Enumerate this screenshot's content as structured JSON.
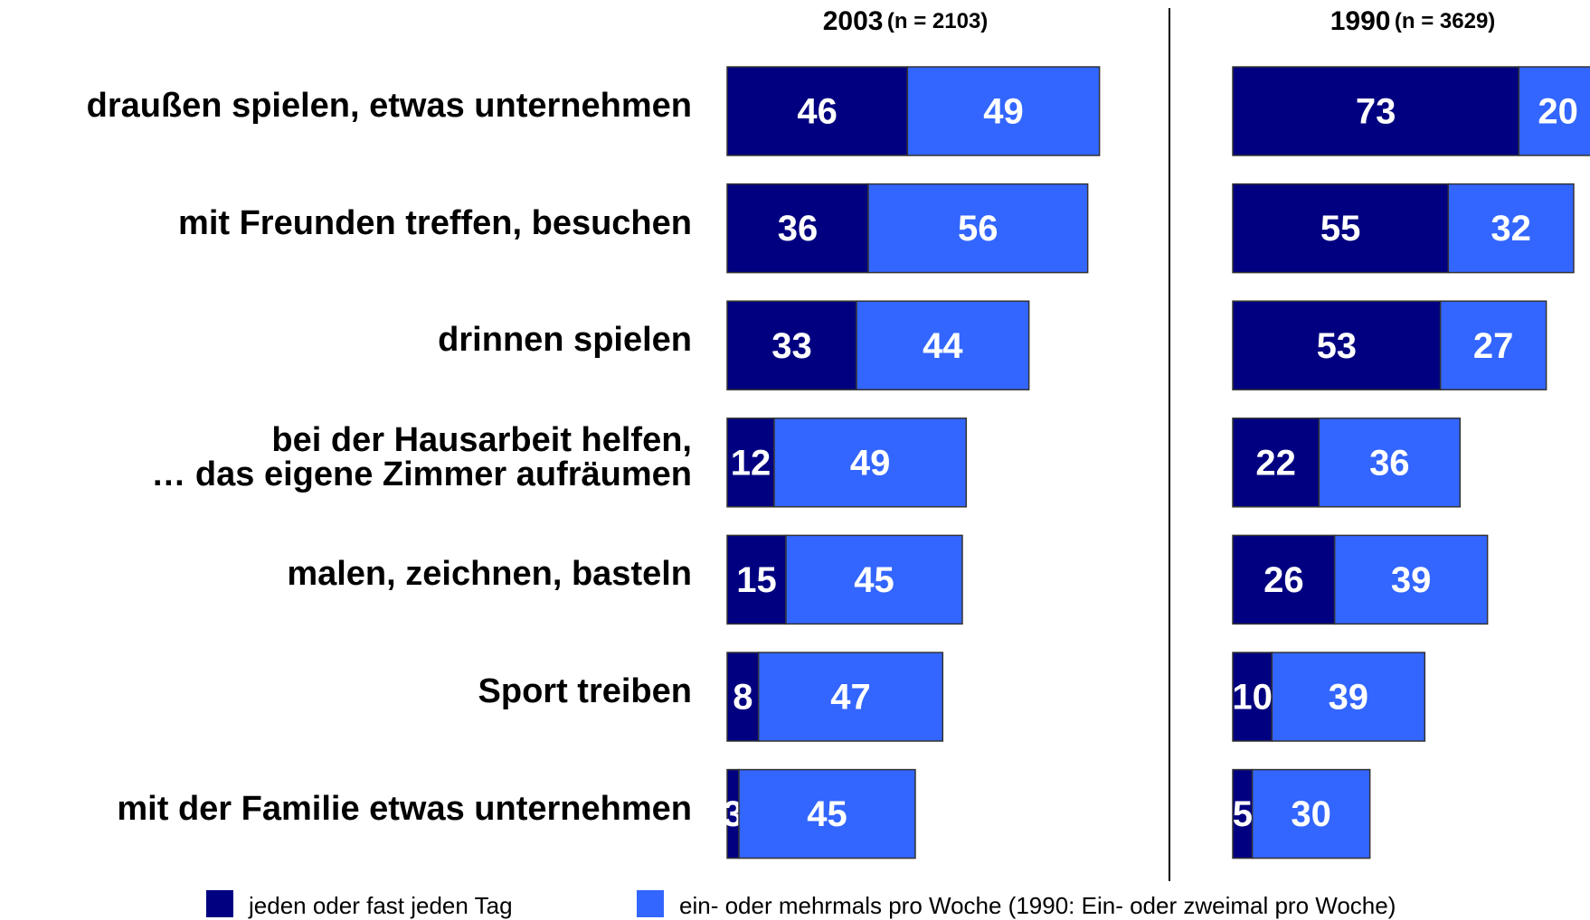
{
  "chart_data": {
    "type": "stacked_bar",
    "categories": [
      "draußen spielen, etwas unternehmen",
      "mit Freunden treffen, besuchen",
      "drinnen spielen",
      "bei der Hausarbeit helfen,\n… das eigene Zimmer aufräumen",
      "malen, zeichnen, basteln",
      "Sport treiben",
      "mit der Familie etwas unternehmen"
    ],
    "series": [
      {
        "name": "jeden oder fast jeden Tag",
        "color": "#000080"
      },
      {
        "name": "ein- oder mehrmals pro Woche (1990: Ein- oder zweimal pro Woche)",
        "color": "#3366ff"
      }
    ],
    "panels": [
      {
        "title": "2003",
        "subtitle": "(n = 2103)",
        "series": [
          {
            "values": [
              46,
              36,
              33,
              12,
              15,
              8,
              3
            ]
          },
          {
            "values": [
              49,
              56,
              44,
              49,
              45,
              47,
              45
            ]
          }
        ]
      },
      {
        "title": "1990",
        "subtitle": "(n = 3629)",
        "series": [
          {
            "values": [
              73,
              55,
              53,
              22,
              26,
              10,
              5
            ]
          },
          {
            "values": [
              20,
              32,
              27,
              36,
              39,
              39,
              30
            ]
          }
        ]
      }
    ]
  }
}
